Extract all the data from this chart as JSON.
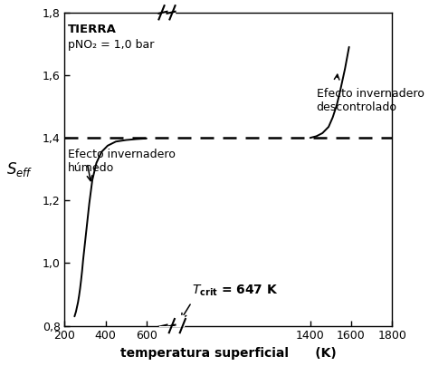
{
  "xlim": [
    200,
    1800
  ],
  "ylim": [
    0.8,
    1.8
  ],
  "xlabel": "temperatura superficial",
  "xlabel_K": "(K)",
  "ylabel": "S_eff",
  "dashed_y": 1.4,
  "annotation_tierra_line1": "TIERRA",
  "annotation_tierra_line2": "pNO₂ = 1,0 bar",
  "annotation_humedo": "Efecto invernadero\nhúmedo",
  "annotation_descontrolado": "Efecto invernadero\ndescontrolado",
  "annotation_tcrit": "T_crit = 647 K",
  "xticks": [
    200,
    400,
    600,
    1400,
    1600,
    1800
  ],
  "yticks": [
    0.8,
    1.0,
    1.2,
    1.4,
    1.6,
    1.8
  ],
  "background_color": "#ffffff",
  "line_color": "#000000",
  "left_t": [
    248,
    255,
    260,
    265,
    270,
    275,
    280,
    285,
    290,
    300,
    310,
    320,
    335,
    355,
    380,
    410,
    450,
    500,
    550,
    600
  ],
  "left_s": [
    0.83,
    0.845,
    0.86,
    0.875,
    0.895,
    0.918,
    0.945,
    0.975,
    1.01,
    1.07,
    1.13,
    1.19,
    1.265,
    1.32,
    1.355,
    1.375,
    1.388,
    1.393,
    1.396,
    1.398
  ],
  "right_t": [
    1400,
    1430,
    1460,
    1490,
    1510,
    1530,
    1545,
    1560,
    1570,
    1580,
    1590
  ],
  "right_s": [
    1.4,
    1.405,
    1.415,
    1.435,
    1.465,
    1.505,
    1.545,
    1.59,
    1.62,
    1.655,
    1.69
  ]
}
